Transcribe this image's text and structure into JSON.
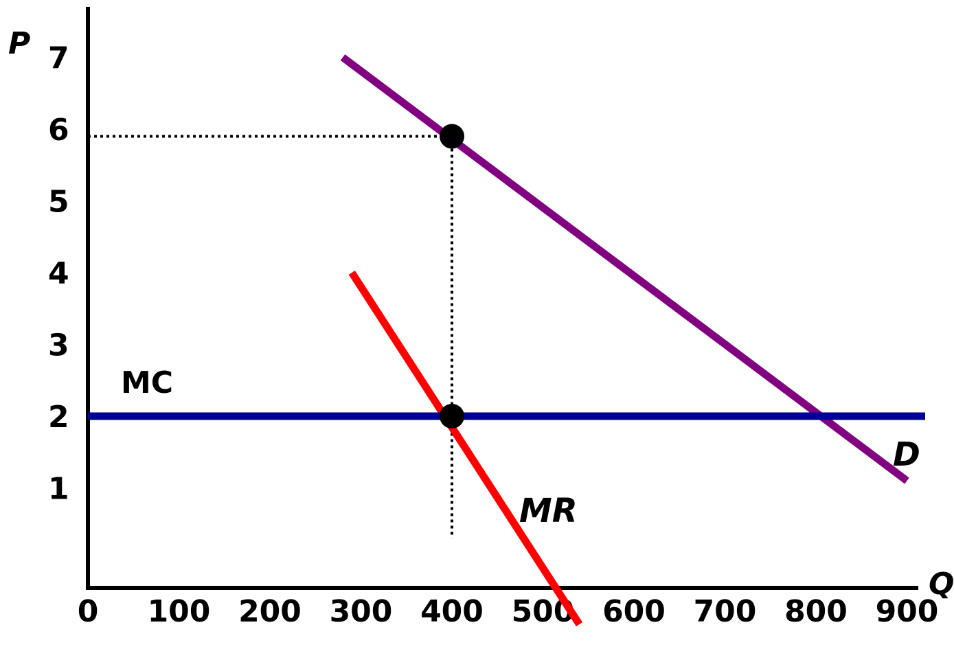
{
  "chart_data": {
    "type": "line",
    "xlabel": "Q",
    "ylabel": "P",
    "xlim": [
      0,
      900
    ],
    "ylim": [
      0,
      7
    ],
    "x_ticks": [
      "0",
      "100",
      "200",
      "300",
      "400",
      "500",
      "600",
      "700",
      "800",
      "900"
    ],
    "y_ticks": [
      "1",
      "2",
      "3",
      "4",
      "5",
      "6",
      "7"
    ],
    "grid": false,
    "series": [
      {
        "name": "D",
        "color": "#800080",
        "x": [
          280,
          900
        ],
        "y": [
          7.0,
          1.1
        ]
      },
      {
        "name": "MR",
        "color": "#ff0000",
        "x": [
          290,
          540
        ],
        "y": [
          4.0,
          -0.9
        ]
      },
      {
        "name": "MC",
        "color": "#000099",
        "x": [
          0,
          920
        ],
        "y": [
          2,
          2
        ]
      }
    ],
    "points": [
      {
        "x": 400,
        "y": 5.9
      },
      {
        "x": 400,
        "y": 2.0
      }
    ],
    "guides": [
      {
        "from": [
          0,
          5.9
        ],
        "to": [
          400,
          5.9
        ]
      },
      {
        "from": [
          400,
          5.9
        ],
        "to": [
          400,
          0.3
        ]
      }
    ]
  }
}
